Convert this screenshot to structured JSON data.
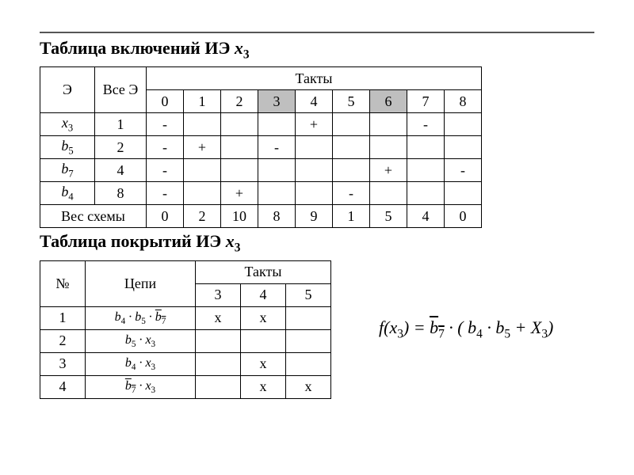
{
  "title1_prefix": "Таблица включений ИЭ ",
  "title1_var": "x",
  "title1_sub": "3",
  "title2_prefix": "Таблица покрытий ИЭ ",
  "title2_var": "x",
  "title2_sub": "3",
  "t1": {
    "header_e": "Э",
    "header_all": "Все Э",
    "header_takty": "Такты",
    "ticks": [
      "0",
      "1",
      "2",
      "3",
      "4",
      "5",
      "6",
      "7",
      "8"
    ],
    "shaded_ticks": [
      3,
      6
    ],
    "rows": [
      {
        "label_var": "x",
        "label_sub": "3",
        "weight": "1",
        "cells": [
          "-",
          "",
          "",
          "",
          "+",
          "",
          "",
          "-",
          ""
        ]
      },
      {
        "label_var": "b",
        "label_sub": "5",
        "weight": "2",
        "cells": [
          "-",
          "+",
          "",
          "-",
          "",
          "",
          "",
          "",
          ""
        ]
      },
      {
        "label_var": "b",
        "label_sub": "7",
        "weight": "4",
        "cells": [
          "-",
          "",
          "",
          "",
          "",
          "",
          "+",
          "",
          "-"
        ]
      },
      {
        "label_var": "b",
        "label_sub": "4",
        "weight": "8",
        "cells": [
          "-",
          "",
          "+",
          "",
          "",
          "-",
          "",
          "",
          ""
        ]
      }
    ],
    "footer_label": "Вес схемы",
    "footer": [
      "0",
      "2",
      "10",
      "8",
      "9",
      "1",
      "5",
      "4",
      "0"
    ]
  },
  "t2": {
    "header_n": "№",
    "header_c": "Цепи",
    "header_takty": "Такты",
    "ticks": [
      "3",
      "4",
      "5"
    ],
    "rows": [
      {
        "n": "1",
        "chain_html": "b<span class=\"sub\">4</span> · b<span class=\"sub\">5</span> · <span class=\"overline\">b<span class=\"sub\">7</span></span>",
        "cells": [
          "x",
          "x",
          ""
        ]
      },
      {
        "n": "2",
        "chain_html": "b<span class=\"sub\">5</span> · x<span class=\"sub\">3</span>",
        "cells": [
          "",
          "",
          ""
        ]
      },
      {
        "n": "3",
        "chain_html": "b<span class=\"sub\">4</span> · x<span class=\"sub\">3</span>",
        "cells": [
          "",
          "x",
          ""
        ]
      },
      {
        "n": "4",
        "chain_html": "<span class=\"overline\">b<span class=\"sub\">7</span></span> · x<span class=\"sub\">3</span>",
        "cells": [
          "",
          "x",
          "x"
        ]
      }
    ]
  },
  "formula_html": "f(x<span class=\"sub\">3</span>) = <span class=\"overline\">b<span class=\"sub\">7</span></span> · ( b<span class=\"sub\">4</span> · b<span class=\"sub\">5</span> +  X<span class=\"sub\">3</span>)",
  "colors": {
    "shaded": "#bfbfbf",
    "border": "#000000",
    "bg": "#ffffff"
  }
}
